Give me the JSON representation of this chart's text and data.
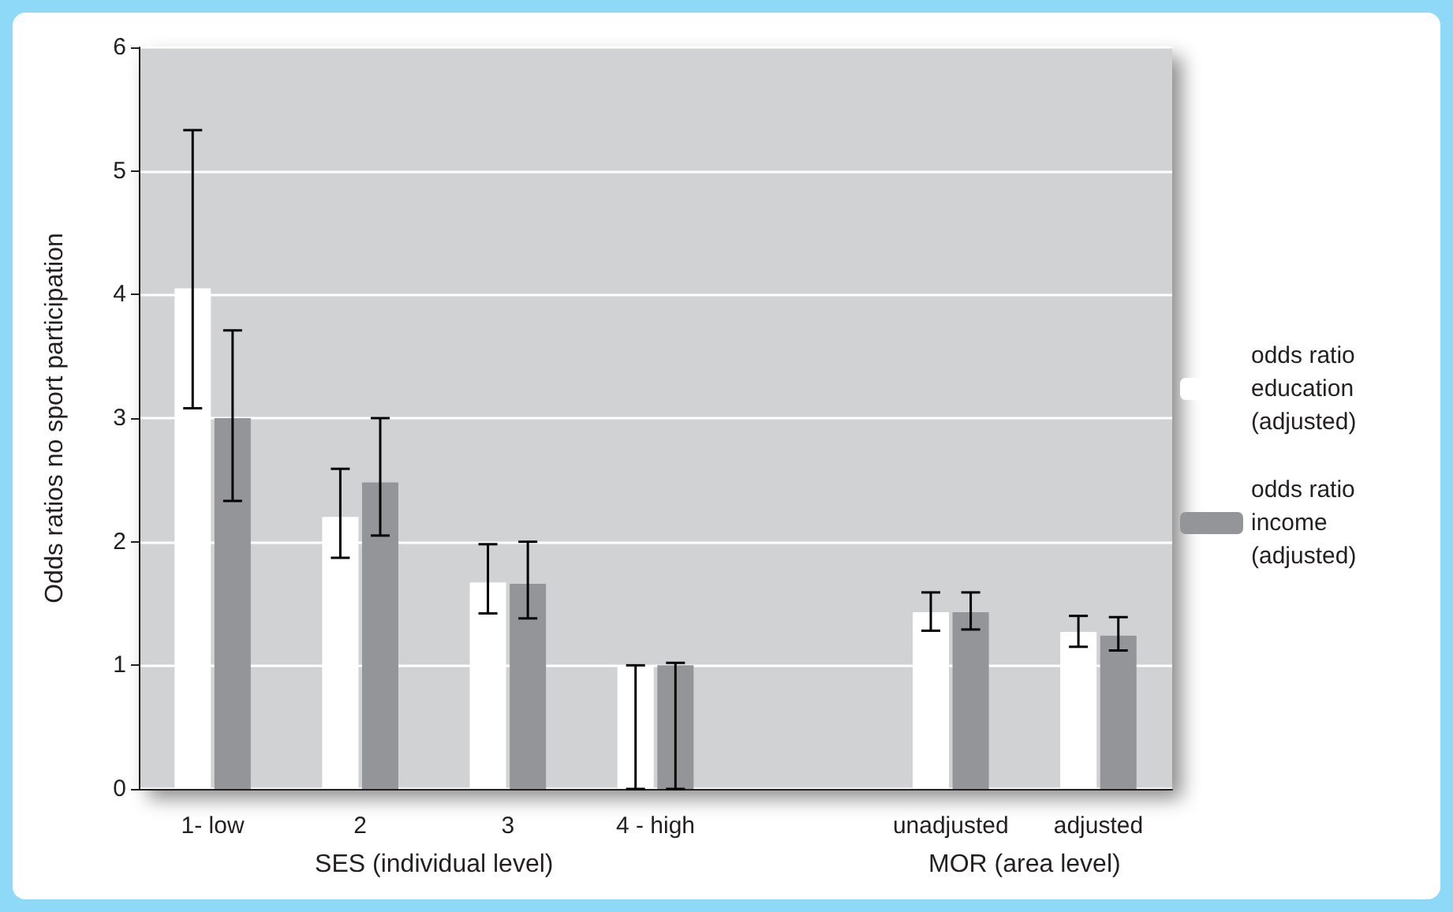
{
  "chart_data": {
    "type": "bar",
    "ylabel": "Odds ratios no sport participation",
    "categories": [
      "1- low",
      "2",
      "3",
      "4 - high",
      null,
      "unadjusted",
      "adjusted"
    ],
    "series": [
      {
        "name": "odds ratio education (adjusted)",
        "color": "#ffffff",
        "values": [
          4.05,
          2.2,
          1.67,
          1.0,
          null,
          1.43,
          1.27
        ],
        "errors": [
          [
            3.08,
            5.33
          ],
          [
            1.87,
            2.59
          ],
          [
            1.42,
            1.98
          ],
          [
            0,
            1.0
          ],
          null,
          [
            1.28,
            1.59
          ],
          [
            1.15,
            1.4
          ]
        ]
      },
      {
        "name": "odds ratio income (adjusted)",
        "color": "#939598",
        "values": [
          3.0,
          2.48,
          1.66,
          1.0,
          null,
          1.43,
          1.24
        ],
        "errors": [
          [
            2.33,
            3.71
          ],
          [
            2.05,
            3.0
          ],
          [
            1.38,
            2.0
          ],
          [
            0,
            1.02
          ],
          null,
          [
            1.29,
            1.59
          ],
          [
            1.12,
            1.39
          ]
        ]
      }
    ],
    "ylim": [
      0,
      6
    ],
    "yticks": [
      0,
      1,
      2,
      3,
      4,
      5,
      6
    ],
    "grid": "y",
    "legend": "right",
    "annotations": [
      "SES (individual level)",
      "MOR (area level)"
    ]
  }
}
